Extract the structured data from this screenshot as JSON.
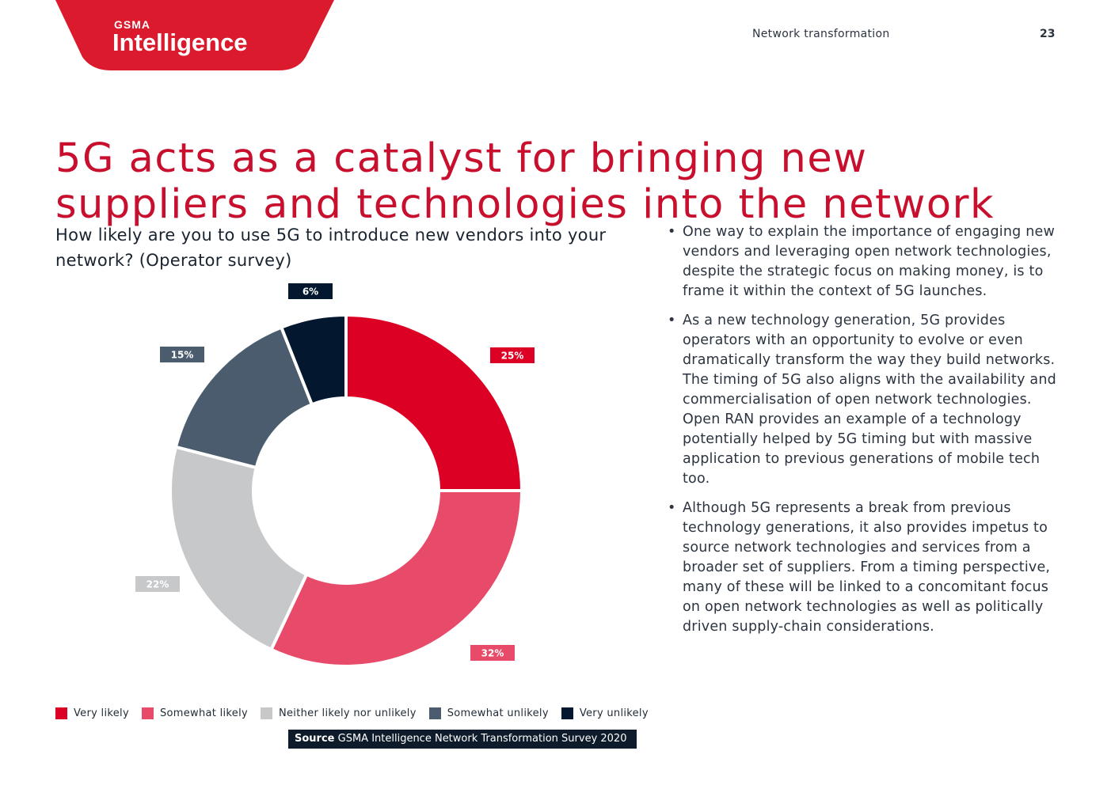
{
  "header": {
    "logo_small": "GSMA",
    "logo_large": "Intelligence",
    "section": "Network transformation",
    "page_number": "23",
    "accent_color": "#dc1a2d"
  },
  "title": "5G acts as a catalyst for bringing new suppliers and technologies into the network",
  "question": "How likely are you to use 5G to introduce new vendors into your network? (Operator survey)",
  "chart_data": {
    "type": "pie",
    "variant": "donut",
    "categories": [
      "Very likely",
      "Somewhat likely",
      "Neither likely nor unlikely",
      "Somewhat unlikely",
      "Very unlikely"
    ],
    "values": [
      25,
      32,
      22,
      15,
      6
    ],
    "labels": [
      "25%",
      "32%",
      "22%",
      "15%",
      "6%"
    ],
    "colors": [
      "#dd0025",
      "#e84b6a",
      "#c7c8ca",
      "#4a5c6d",
      "#03172e"
    ],
    "legend_position": "bottom"
  },
  "source": {
    "label": "Source",
    "text": "GSMA Intelligence Network Transformation Survey 2020"
  },
  "bullets": [
    "One way to explain the importance of engaging new vendors and leveraging open network technologies, despite the strategic focus on making money, is to frame it within the context of 5G launches.",
    "As a new technology generation, 5G provides operators with an opportunity to evolve or even dramatically transform the way they build networks. The timing of 5G also aligns with the availability and commercialisation of open network technologies. Open RAN provides an example of a technology potentially helped by 5G timing but with massive application to previous generations of mobile tech too.",
    "Although 5G represents a break from previous technology generations, it also provides impetus to source network technologies and services from a broader set of suppliers. From a timing perspective, many of these will be linked to a concomitant focus on open network technologies as well as politically driven supply-chain considerations."
  ]
}
